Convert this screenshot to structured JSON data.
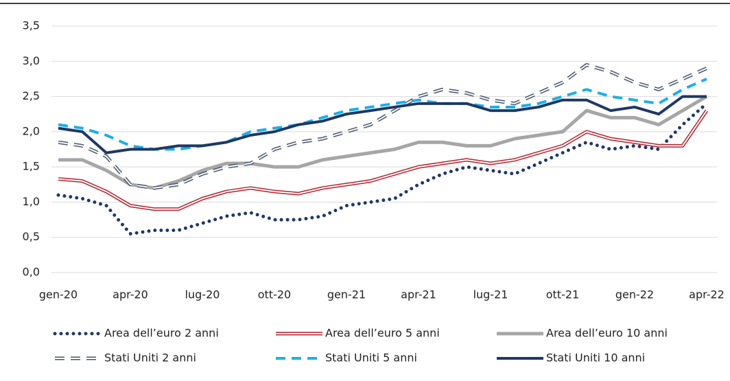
{
  "chart_data": {
    "type": "line",
    "categories": [
      "gen-20",
      null,
      null,
      "apr-20",
      null,
      null,
      "lug-20",
      null,
      null,
      "ott-20",
      null,
      null,
      "gen-21",
      null,
      null,
      "apr-21",
      null,
      null,
      "lug-21",
      null,
      null,
      "ott-21",
      null,
      null,
      "gen-22",
      null,
      null,
      "apr-22"
    ],
    "ylim": [
      0,
      3.5
    ],
    "yticks": [
      {
        "value": 0,
        "label": "0,0"
      },
      {
        "value": 0.5,
        "label": "0,5"
      },
      {
        "value": 1,
        "label": "1,0"
      },
      {
        "value": 1.5,
        "label": "1,5"
      },
      {
        "value": 2,
        "label": "2,0"
      },
      {
        "value": 2.5,
        "label": "2,5"
      },
      {
        "value": 3,
        "label": "3,0"
      },
      {
        "value": 3.5,
        "label": "3,5"
      }
    ],
    "grid": true,
    "series": [
      {
        "name": "Area dell’euro 2 anni",
        "color": "#1f3864",
        "style": "dotted",
        "values": [
          1.1,
          1.05,
          0.95,
          0.55,
          0.6,
          0.6,
          0.7,
          0.8,
          0.85,
          0.75,
          0.75,
          0.8,
          0.95,
          1.0,
          1.05,
          1.25,
          1.4,
          1.5,
          1.45,
          1.4,
          1.55,
          1.7,
          1.85,
          1.75,
          1.8,
          1.75,
          2.1,
          2.4
        ]
      },
      {
        "name": "Area dell’euro 5 anni",
        "color": "#b2222e",
        "style": "double",
        "values": [
          1.33,
          1.3,
          1.15,
          0.95,
          0.9,
          0.9,
          1.05,
          1.15,
          1.2,
          1.15,
          1.12,
          1.2,
          1.25,
          1.3,
          1.4,
          1.5,
          1.55,
          1.6,
          1.55,
          1.6,
          1.7,
          1.8,
          2.0,
          1.9,
          1.85,
          1.8,
          1.8,
          2.3
        ]
      },
      {
        "name": "Area dell’euro 10 anni",
        "color": "#a6a6a6",
        "style": "solid",
        "values": [
          1.6,
          1.6,
          1.45,
          1.25,
          1.2,
          1.3,
          1.45,
          1.55,
          1.55,
          1.5,
          1.5,
          1.6,
          1.65,
          1.7,
          1.75,
          1.85,
          1.85,
          1.8,
          1.8,
          1.9,
          1.95,
          2.0,
          2.3,
          2.2,
          2.2,
          2.1,
          2.3,
          2.5
        ]
      },
      {
        "name": "Stati Uniti 2 anni",
        "color": "#44546a",
        "style": "double-dashed",
        "values": [
          1.85,
          1.8,
          1.65,
          1.25,
          1.2,
          1.25,
          1.4,
          1.5,
          1.55,
          1.75,
          1.85,
          1.9,
          2.0,
          2.1,
          2.3,
          2.5,
          2.6,
          2.55,
          2.45,
          2.4,
          2.55,
          2.7,
          2.95,
          2.85,
          2.7,
          2.6,
          2.75,
          2.9
        ]
      },
      {
        "name": "Stati Uniti 5 anni",
        "color": "#1ab0e8",
        "style": "dashed",
        "values": [
          2.1,
          2.05,
          1.95,
          1.8,
          1.75,
          1.75,
          1.8,
          1.85,
          2.0,
          2.05,
          2.1,
          2.2,
          2.3,
          2.35,
          2.4,
          2.45,
          2.4,
          2.4,
          2.35,
          2.35,
          2.4,
          2.5,
          2.6,
          2.5,
          2.45,
          2.4,
          2.6,
          2.75
        ]
      },
      {
        "name": "Stati Uniti 10 anni",
        "color": "#1f3864",
        "style": "solid",
        "values": [
          2.05,
          2.0,
          1.7,
          1.75,
          1.75,
          1.8,
          1.8,
          1.85,
          1.95,
          2.0,
          2.1,
          2.15,
          2.25,
          2.3,
          2.35,
          2.4,
          2.4,
          2.4,
          2.3,
          2.3,
          2.35,
          2.45,
          2.45,
          2.3,
          2.35,
          2.25,
          2.5,
          2.5
        ]
      }
    ]
  }
}
